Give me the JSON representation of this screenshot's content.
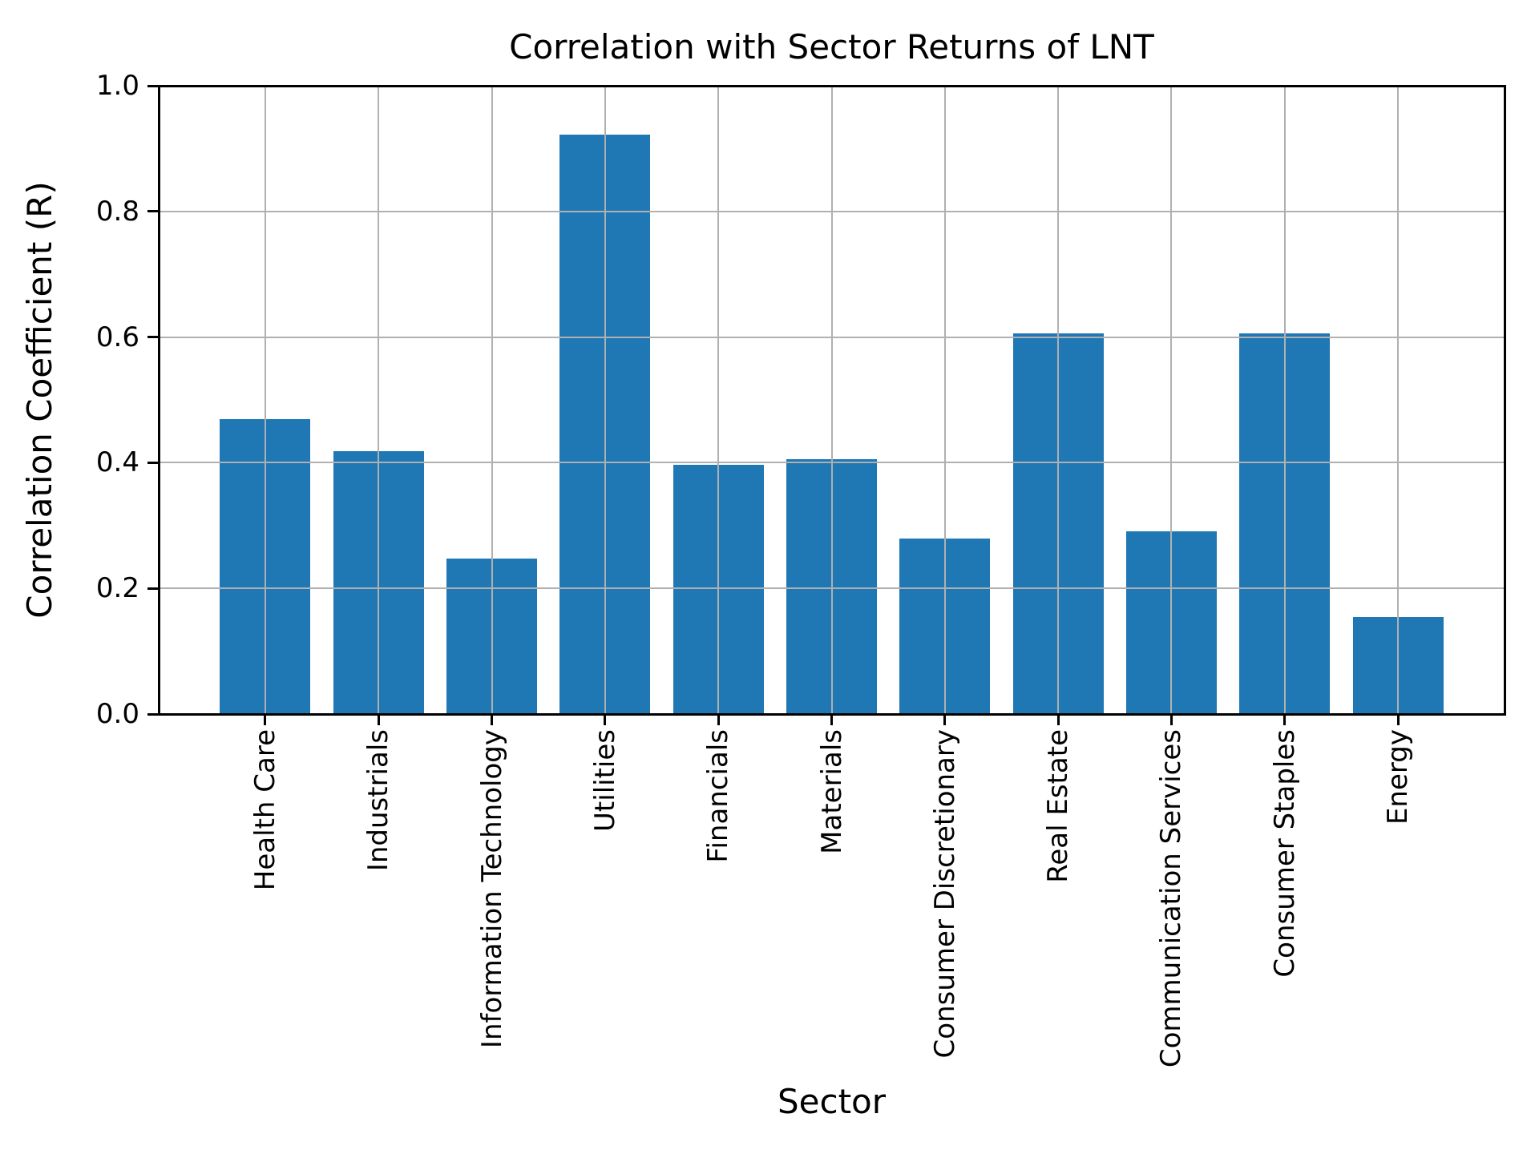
{
  "chart_data": {
    "type": "bar",
    "title": "Correlation with Sector Returns of LNT",
    "xlabel": "Sector",
    "ylabel": "Correlation Coefficient (R)",
    "categories": [
      "Health Care",
      "Industrials",
      "Information Technology",
      "Utilities",
      "Financials",
      "Materials",
      "Consumer Discretionary",
      "Real Estate",
      "Communication Services",
      "Consumer Staples",
      "Energy"
    ],
    "values": [
      0.469,
      0.419,
      0.248,
      0.922,
      0.397,
      0.406,
      0.279,
      0.606,
      0.291,
      0.606,
      0.154
    ],
    "ylim": [
      0.0,
      1.0
    ],
    "yticks": [
      0.0,
      0.2,
      0.4,
      0.6,
      0.8,
      1.0
    ],
    "ytick_labels": [
      "0.0",
      "0.2",
      "0.4",
      "0.6",
      "0.8",
      "1.0"
    ],
    "grid": true,
    "legend_position": "none",
    "bar_color": "#1f77b4",
    "grid_color": "#b0b0b0",
    "spine_color": "#000000",
    "background": "#ffffff"
  }
}
